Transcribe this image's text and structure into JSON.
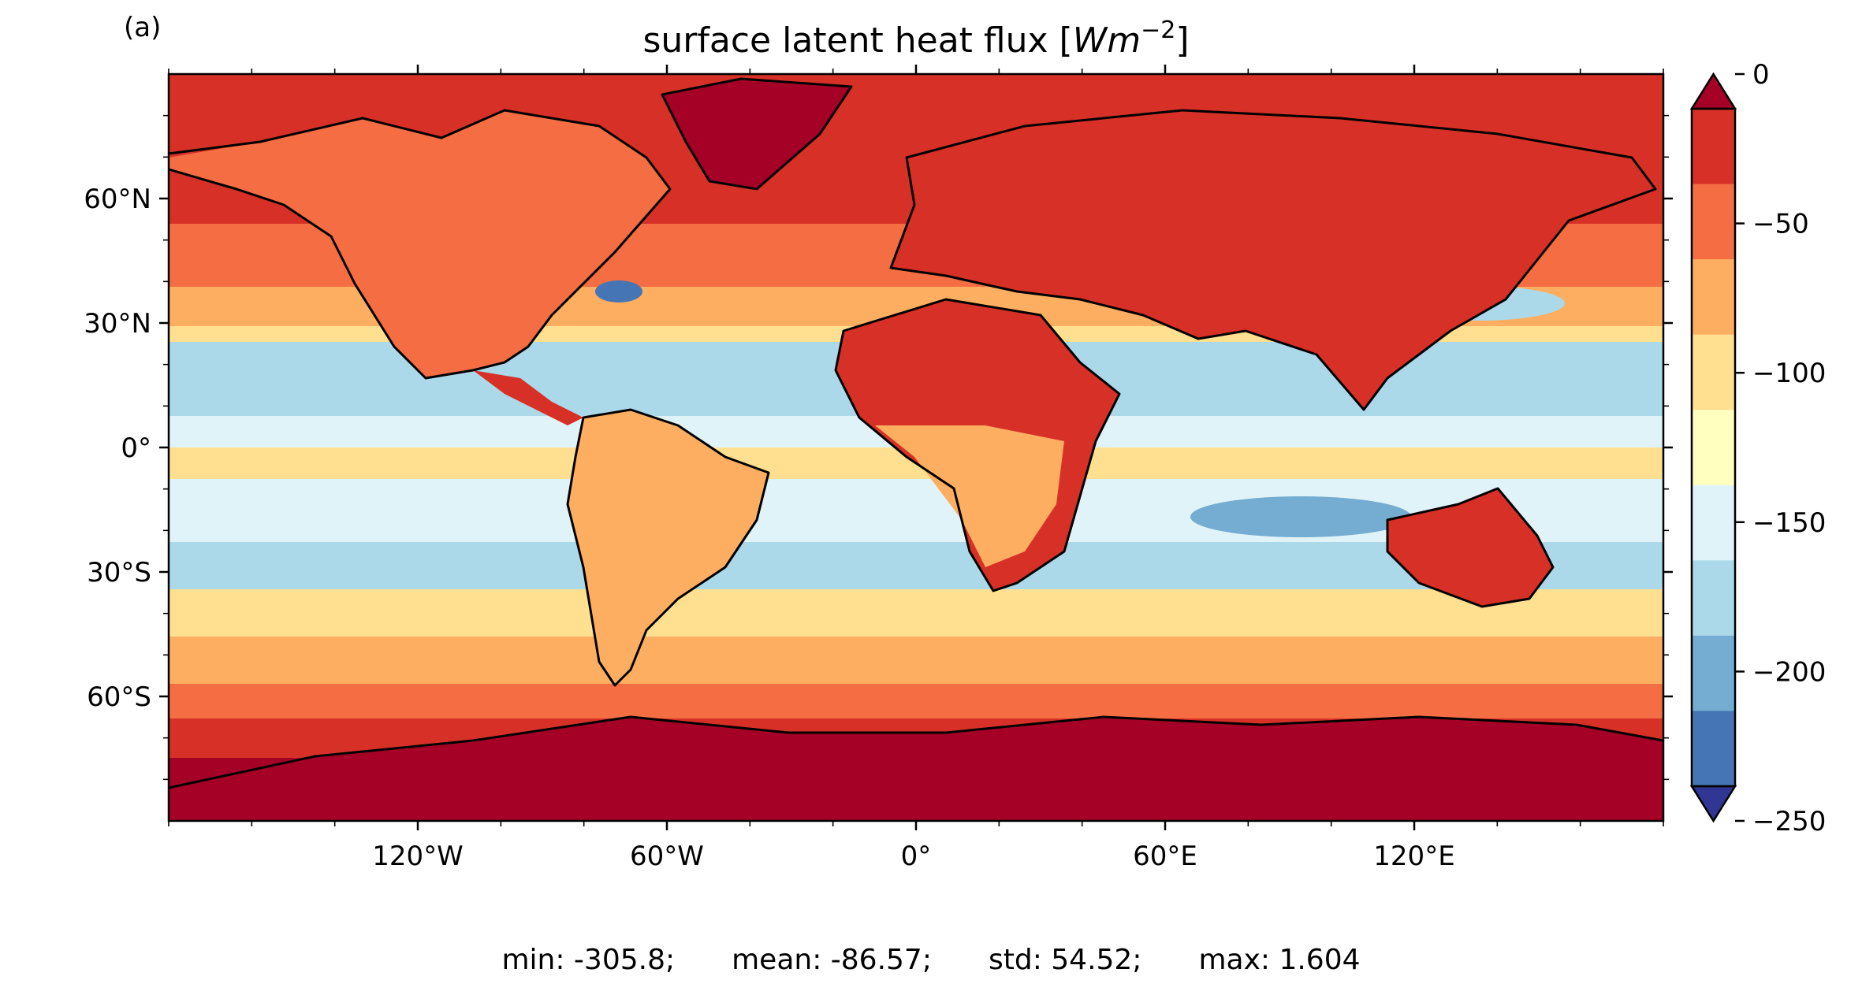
{
  "panel_label": "(a)",
  "title_main": "surface latent heat flux ",
  "title_unit_W": "W",
  "title_unit_m": "m",
  "title_unit_exp": "−2",
  "title_bracket_open": "[",
  "title_bracket_close": "]",
  "lat_ticks": [
    "60°N",
    "30°N",
    "0°",
    "30°S",
    "60°S"
  ],
  "lon_ticks": [
    "120°W",
    "60°W",
    "0°",
    "60°E",
    "120°E"
  ],
  "colorbar": {
    "tick_labels": [
      "0",
      "−50",
      "−100",
      "−150",
      "−200",
      "−250"
    ],
    "levels": [
      0,
      -25,
      -50,
      -75,
      -100,
      -125,
      -150,
      -175,
      -200,
      -225,
      -250
    ],
    "colors": [
      "#a50026",
      "#d73027",
      "#f46d43",
      "#fdae61",
      "#fee090",
      "#ffffbf",
      "#e0f3f8",
      "#abd9e9",
      "#74add1",
      "#4575b4",
      "#313695"
    ],
    "extend": "both"
  },
  "stats": {
    "min": "min: -305.8;",
    "mean": "mean: -86.57;",
    "std": "std: 54.52;",
    "max": "max: 1.604"
  },
  "colors": {
    "ocean_high_lat": "#d73027",
    "ocean_mid_lat": "#f46d43",
    "ocean_subtropics": "#abd9e9",
    "ocean_equatorial": "#e0f3f8",
    "land_desert": "#d73027",
    "land_tropics": "#fdae61",
    "polar": "#a50026",
    "coastline": "#000000"
  }
}
